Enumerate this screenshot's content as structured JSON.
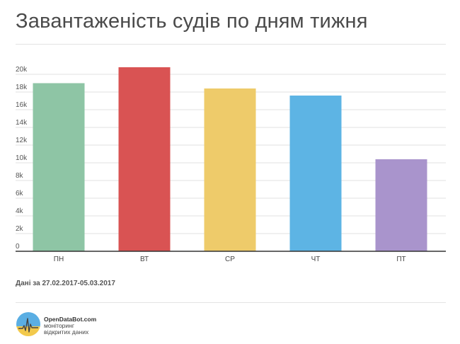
{
  "title": "Завантаженість судів по дням тижня",
  "caption": "Дані за 27.02.2017-05.03.2017",
  "brand": {
    "name": "OpenDataBot.com",
    "tagline": "моніторинг відкритих даних",
    "logo_icon": "opendatabot-logo-icon",
    "colors": {
      "top": "#5aaee3",
      "bottom": "#f2c94c",
      "line": "#444444"
    }
  },
  "chart_data": {
    "type": "bar",
    "categories": [
      "ПН",
      "ВТ",
      "СР",
      "ЧТ",
      "ПТ"
    ],
    "values": [
      19000,
      20800,
      18400,
      17600,
      10400
    ],
    "colors": [
      "#8ec5a5",
      "#d95353",
      "#eecb6a",
      "#5db4e4",
      "#a994cc"
    ],
    "ylim": [
      0,
      20000
    ],
    "y_ticks": [
      {
        "value": 0,
        "label": "0"
      },
      {
        "value": 2000,
        "label": "2k"
      },
      {
        "value": 4000,
        "label": "4k"
      },
      {
        "value": 6000,
        "label": "6k"
      },
      {
        "value": 8000,
        "label": "8k"
      },
      {
        "value": 10000,
        "label": "10k"
      },
      {
        "value": 12000,
        "label": "12k"
      },
      {
        "value": 14000,
        "label": "14k"
      },
      {
        "value": 16000,
        "label": "16k"
      },
      {
        "value": 18000,
        "label": "18k"
      },
      {
        "value": 20000,
        "label": "20k"
      }
    ],
    "grid": true,
    "legend": "none"
  }
}
